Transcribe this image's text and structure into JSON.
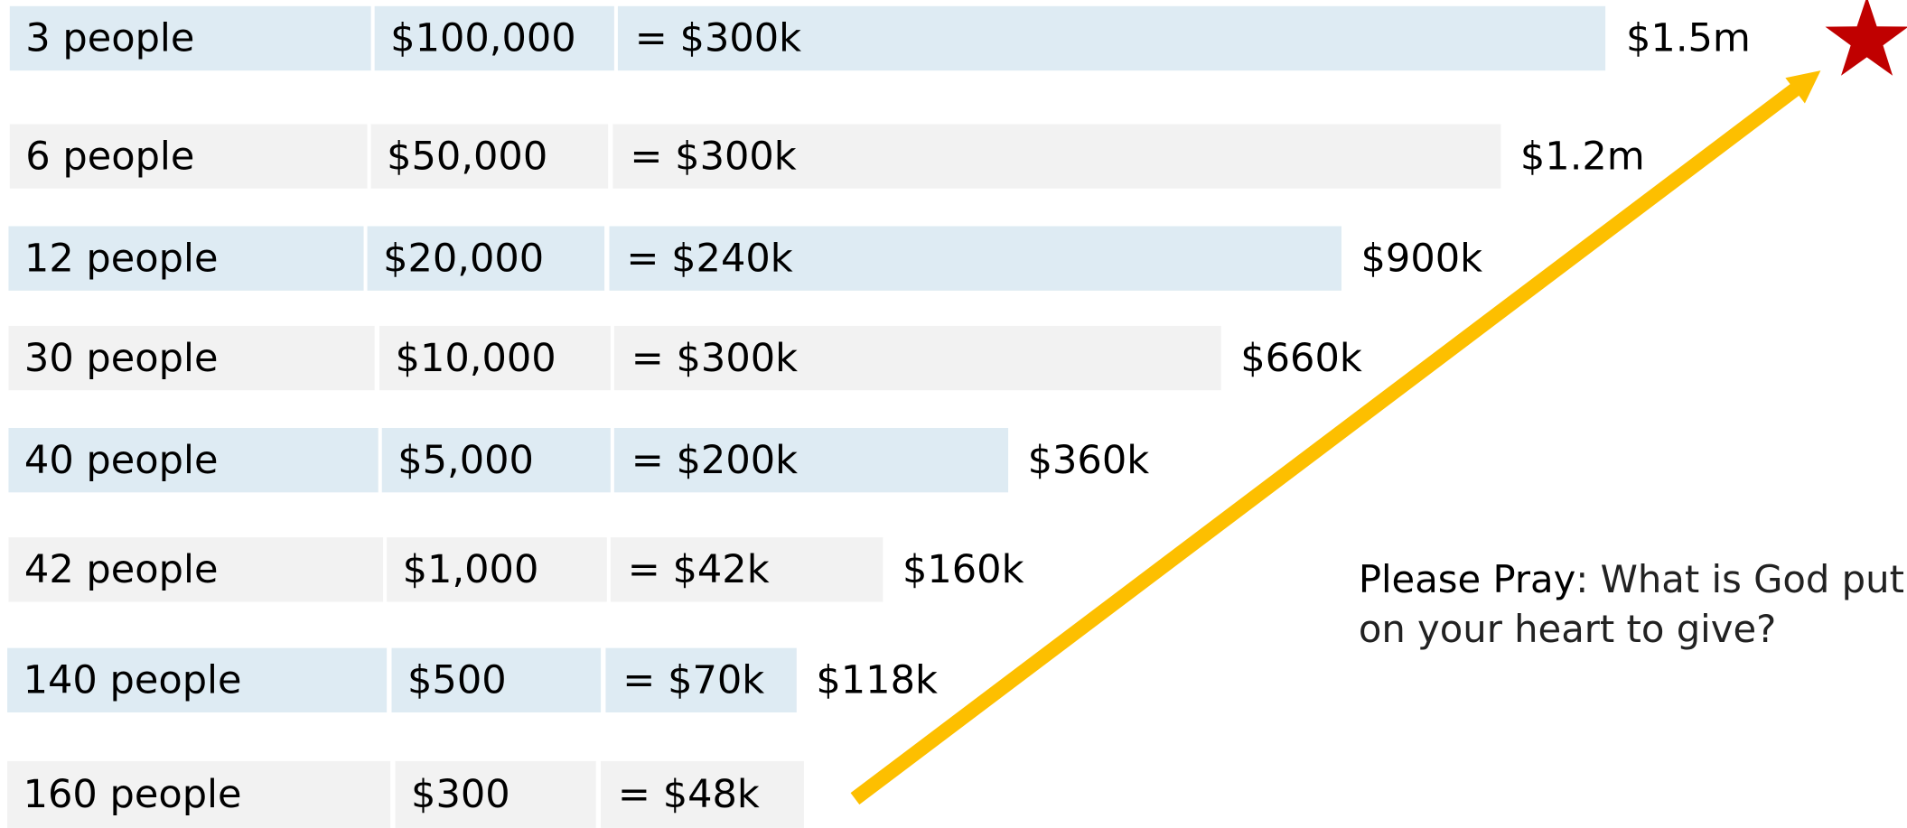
{
  "rows": [
    {
      "people": "3 people",
      "amount": "$100,000",
      "total": "= $300k",
      "cumulative": "$1.5m"
    },
    {
      "people": "6 people",
      "amount": "$50,000",
      "total": "= $300k",
      "cumulative": "$1.2m"
    },
    {
      "people": "12 people",
      "amount": "$20,000",
      "total": "= $240k",
      "cumulative": "$900k"
    },
    {
      "people": "30 people",
      "amount": "$10,000",
      "total": "= $300k",
      "cumulative": "$660k"
    },
    {
      "people": "40 people",
      "amount": "$5,000",
      "total": "= $200k",
      "cumulative": "$360k"
    },
    {
      "people": "42 people",
      "amount": "$1,000",
      "total": "= $42k",
      "cumulative": "$160k"
    },
    {
      "people": "140 people",
      "amount": "$500",
      "total": "= $70k",
      "cumulative": "$118k"
    },
    {
      "people": "160 people",
      "amount": "$300",
      "total": "= $48k"
    }
  ],
  "note": {
    "emphasis": "Please Pray",
    "line1": ": What is God put",
    "line2": "on your heart to give?"
  }
}
